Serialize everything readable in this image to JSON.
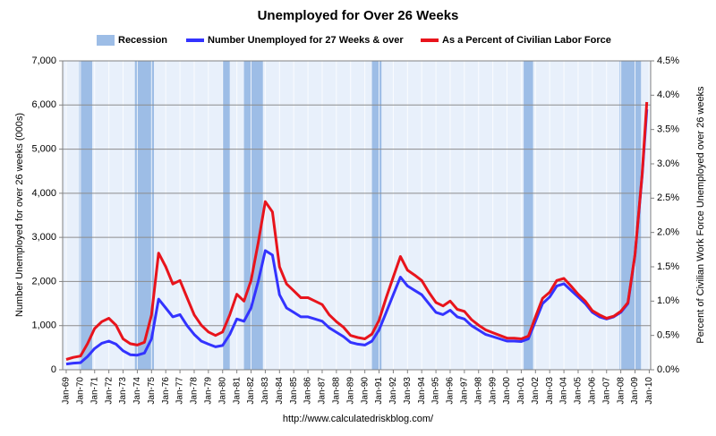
{
  "chart_data": {
    "type": "line",
    "title": "Unemployed for Over 26 Weeks",
    "y_label": "Number Unemployed for over 26 weeks (000s)",
    "y2_label": "Percent of Civilian Work Force Unemployed over 26 weeks",
    "source": "http://www.calculatedriskblog.com/",
    "grid": true,
    "recessions": {
      "name": "Recession",
      "color": "#9dbde6",
      "periods": [
        [
          1969.92,
          1970.83
        ],
        [
          1973.83,
          1975.17
        ],
        [
          1980.0,
          1980.5
        ],
        [
          1981.5,
          1982.83
        ],
        [
          1990.5,
          1991.17
        ],
        [
          2001.17,
          2001.83
        ],
        [
          2007.92,
          2009.42
        ]
      ]
    },
    "xlim": [
      1968.75,
      2010.1
    ],
    "xticks": [
      {
        "value": 1969,
        "label": "Jan-69"
      },
      {
        "value": 1970,
        "label": "Jan-70"
      },
      {
        "value": 1971,
        "label": "Jan-71"
      },
      {
        "value": 1972,
        "label": "Jan-72"
      },
      {
        "value": 1973,
        "label": "Jan-73"
      },
      {
        "value": 1974,
        "label": "Jan-74"
      },
      {
        "value": 1975,
        "label": "Jan-75"
      },
      {
        "value": 1976,
        "label": "Jan-76"
      },
      {
        "value": 1977,
        "label": "Jan-77"
      },
      {
        "value": 1978,
        "label": "Jan-78"
      },
      {
        "value": 1979,
        "label": "Jan-79"
      },
      {
        "value": 1980,
        "label": "Jan-80"
      },
      {
        "value": 1981,
        "label": "Jan-81"
      },
      {
        "value": 1982,
        "label": "Jan-82"
      },
      {
        "value": 1983,
        "label": "Jan-83"
      },
      {
        "value": 1984,
        "label": "Jan-84"
      },
      {
        "value": 1985,
        "label": "Jan-85"
      },
      {
        "value": 1986,
        "label": "Jan-86"
      },
      {
        "value": 1987,
        "label": "Jan-87"
      },
      {
        "value": 1988,
        "label": "Jan-88"
      },
      {
        "value": 1989,
        "label": "Jan-89"
      },
      {
        "value": 1990,
        "label": "Jan-90"
      },
      {
        "value": 1991,
        "label": "Jan-91"
      },
      {
        "value": 1992,
        "label": "Jan-92"
      },
      {
        "value": 1993,
        "label": "Jan-93"
      },
      {
        "value": 1994,
        "label": "Jan-94"
      },
      {
        "value": 1995,
        "label": "Jan-95"
      },
      {
        "value": 1996,
        "label": "Jan-96"
      },
      {
        "value": 1997,
        "label": "Jan-97"
      },
      {
        "value": 1998,
        "label": "Jan-98"
      },
      {
        "value": 1999,
        "label": "Jan-99"
      },
      {
        "value": 2000,
        "label": "Jan-00"
      },
      {
        "value": 2001,
        "label": "Jan-01"
      },
      {
        "value": 2002,
        "label": "Jan-02"
      },
      {
        "value": 2003,
        "label": "Jan-03"
      },
      {
        "value": 2004,
        "label": "Jan-04"
      },
      {
        "value": 2005,
        "label": "Jan-05"
      },
      {
        "value": 2006,
        "label": "Jan-06"
      },
      {
        "value": 2007,
        "label": "Jan-07"
      },
      {
        "value": 2008,
        "label": "Jan-08"
      },
      {
        "value": 2009,
        "label": "Jan-09"
      },
      {
        "value": 2010,
        "label": "Jan-10"
      }
    ],
    "ylim": [
      0,
      7000
    ],
    "yticks": [
      0,
      {
        "value": 1000,
        "label": "1,000"
      },
      {
        "value": 2000,
        "label": "2,000"
      },
      {
        "value": 3000,
        "label": "3,000"
      },
      {
        "value": 4000,
        "label": "4,000"
      },
      {
        "value": 5000,
        "label": "5,000"
      },
      {
        "value": 6000,
        "label": "6,000"
      },
      {
        "value": 7000,
        "label": "7,000"
      }
    ],
    "y2lim": [
      0,
      4.5
    ],
    "y2ticks": [
      {
        "value": 0,
        "label": "0.0%"
      },
      {
        "value": 0.5,
        "label": "0.5%"
      },
      {
        "value": 1,
        "label": "1.0%"
      },
      {
        "value": 1.5,
        "label": "1.5%"
      },
      {
        "value": 2,
        "label": "2.0%"
      },
      {
        "value": 2.5,
        "label": "2.5%"
      },
      {
        "value": 3,
        "label": "3.0%"
      },
      {
        "value": 3.5,
        "label": "3.5%"
      },
      {
        "value": 4,
        "label": "4.0%"
      },
      {
        "value": 4.5,
        "label": "4.5%"
      }
    ],
    "x": [
      1969,
      1969.5,
      1970,
      1970.5,
      1971,
      1971.5,
      1972,
      1972.5,
      1973,
      1973.5,
      1974,
      1974.5,
      1975,
      1975.5,
      1976,
      1976.5,
      1977,
      1977.5,
      1978,
      1978.5,
      1979,
      1979.5,
      1980,
      1980.5,
      1981,
      1981.5,
      1982,
      1982.5,
      1983,
      1983.5,
      1984,
      1984.5,
      1985,
      1985.5,
      1986,
      1986.5,
      1987,
      1987.5,
      1988,
      1988.5,
      1989,
      1989.5,
      1990,
      1990.5,
      1991,
      1991.5,
      1992,
      1992.5,
      1993,
      1993.5,
      1994,
      1994.5,
      1995,
      1995.5,
      1996,
      1996.5,
      1997,
      1997.5,
      1998,
      1998.5,
      1999,
      1999.5,
      2000,
      2000.5,
      2001,
      2001.5,
      2002,
      2002.5,
      2003,
      2003.5,
      2004,
      2004.5,
      2005,
      2005.5,
      2006,
      2006.5,
      2007,
      2007.5,
      2008,
      2008.5,
      2009,
      2009.5,
      2009.83
    ],
    "series": [
      {
        "name": "Number Unemployed for 27 Weeks & over",
        "color": "#3333ff",
        "axis": "y",
        "values": [
          130,
          150,
          160,
          300,
          480,
          600,
          650,
          580,
          430,
          340,
          330,
          380,
          700,
          1600,
          1400,
          1200,
          1250,
          1000,
          800,
          650,
          580,
          520,
          550,
          800,
          1150,
          1100,
          1400,
          2000,
          2700,
          2600,
          1700,
          1400,
          1300,
          1200,
          1200,
          1150,
          1100,
          950,
          850,
          750,
          620,
          580,
          560,
          650,
          900,
          1300,
          1700,
          2100,
          1900,
          1800,
          1700,
          1500,
          1300,
          1250,
          1350,
          1200,
          1150,
          1000,
          900,
          800,
          750,
          700,
          650,
          650,
          640,
          700,
          1100,
          1500,
          1650,
          1900,
          1950,
          1800,
          1650,
          1500,
          1300,
          1200,
          1150,
          1200,
          1300,
          1500,
          2600,
          4400,
          5900
        ]
      },
      {
        "name": "As a Percent of Civilian Labor Force",
        "color": "#e8141c",
        "axis": "y2",
        "values": [
          0.15,
          0.18,
          0.2,
          0.38,
          0.6,
          0.7,
          0.75,
          0.65,
          0.45,
          0.38,
          0.36,
          0.4,
          0.8,
          1.7,
          1.5,
          1.25,
          1.3,
          1.05,
          0.8,
          0.65,
          0.55,
          0.5,
          0.55,
          0.8,
          1.1,
          1.0,
          1.3,
          1.85,
          2.45,
          2.3,
          1.5,
          1.25,
          1.15,
          1.05,
          1.05,
          1.0,
          0.95,
          0.8,
          0.7,
          0.62,
          0.5,
          0.47,
          0.45,
          0.52,
          0.72,
          1.05,
          1.35,
          1.65,
          1.45,
          1.38,
          1.3,
          1.13,
          0.98,
          0.93,
          1.0,
          0.88,
          0.85,
          0.73,
          0.65,
          0.58,
          0.54,
          0.5,
          0.46,
          0.46,
          0.45,
          0.49,
          0.77,
          1.04,
          1.13,
          1.3,
          1.33,
          1.22,
          1.1,
          1.0,
          0.86,
          0.8,
          0.75,
          0.78,
          0.85,
          0.98,
          1.68,
          2.85,
          3.9
        ]
      }
    ]
  }
}
